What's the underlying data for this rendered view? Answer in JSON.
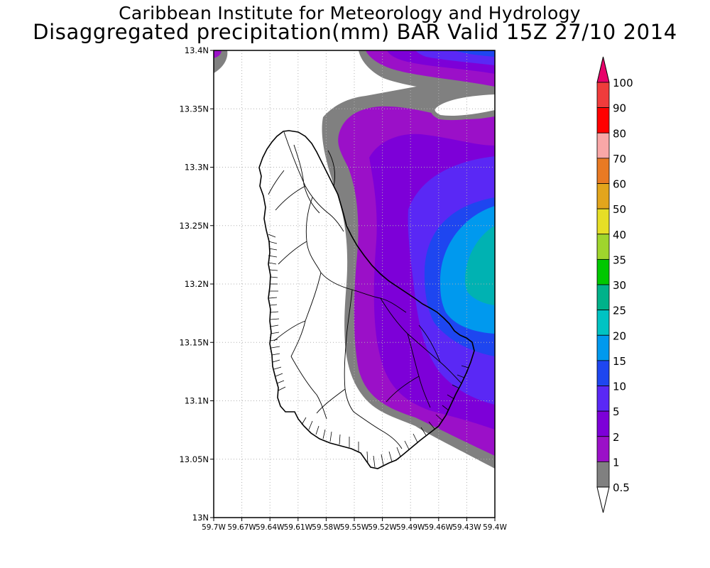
{
  "header": {
    "title": "Caribbean Institute for Meteorology and Hydrology",
    "subtitle": "Disaggregated precipitation(mm) BAR Valid 15Z 27/10 2014"
  },
  "map": {
    "region": "Barbados",
    "lat_range": [
      13.0,
      13.4
    ],
    "lon_range": [
      -59.7,
      -59.4
    ],
    "y_ticks": [
      "13.4N",
      "13.35N",
      "13.3N",
      "13.25N",
      "13.2N",
      "13.15N",
      "13.1N",
      "13.05N",
      "13N"
    ],
    "x_ticks": [
      "59.7W",
      "59.67W",
      "59.64W",
      "59.61W",
      "59.58W",
      "59.55W",
      "59.52W",
      "59.49W",
      "59.46W",
      "59.43W",
      "59.4W"
    ],
    "grid": "dotted"
  },
  "legend": {
    "labels": [
      "100",
      "90",
      "80",
      "70",
      "60",
      "50",
      "40",
      "35",
      "30",
      "25",
      "20",
      "15",
      "10",
      "5",
      "2",
      "1",
      "0.5"
    ],
    "colors": [
      "#e8006a",
      "#f03c3c",
      "#ff0000",
      "#f9a7a7",
      "#e97a23",
      "#e2a51c",
      "#e6de26",
      "#9fd52d",
      "#00c800",
      "#00b28a",
      "#00c3c3",
      "#0099ee",
      "#1e46f0",
      "#5a28f5",
      "#7d00d8",
      "#9b10c8",
      "#808080"
    ]
  }
}
